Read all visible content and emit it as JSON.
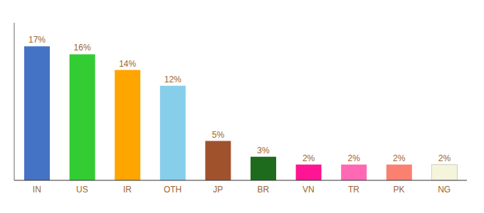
{
  "chart_data": {
    "type": "bar",
    "categories": [
      "IN",
      "US",
      "IR",
      "OTH",
      "JP",
      "BR",
      "VN",
      "TR",
      "PK",
      "NG"
    ],
    "values": [
      17,
      16,
      14,
      12,
      5,
      3,
      2,
      2,
      2,
      2
    ],
    "value_labels": [
      "17%",
      "16%",
      "14%",
      "12%",
      "5%",
      "3%",
      "2%",
      "2%",
      "2%",
      "2%"
    ],
    "colors": [
      "#4472C4",
      "#33CC33",
      "#FFA500",
      "#87CEEB",
      "#A0522D",
      "#1E6B1E",
      "#FF1493",
      "#FF69B4",
      "#FA8072",
      "#F5F5DC"
    ],
    "ylim": [
      0,
      20
    ],
    "grid": false,
    "data_labels": true,
    "tick_labels": "x"
  }
}
